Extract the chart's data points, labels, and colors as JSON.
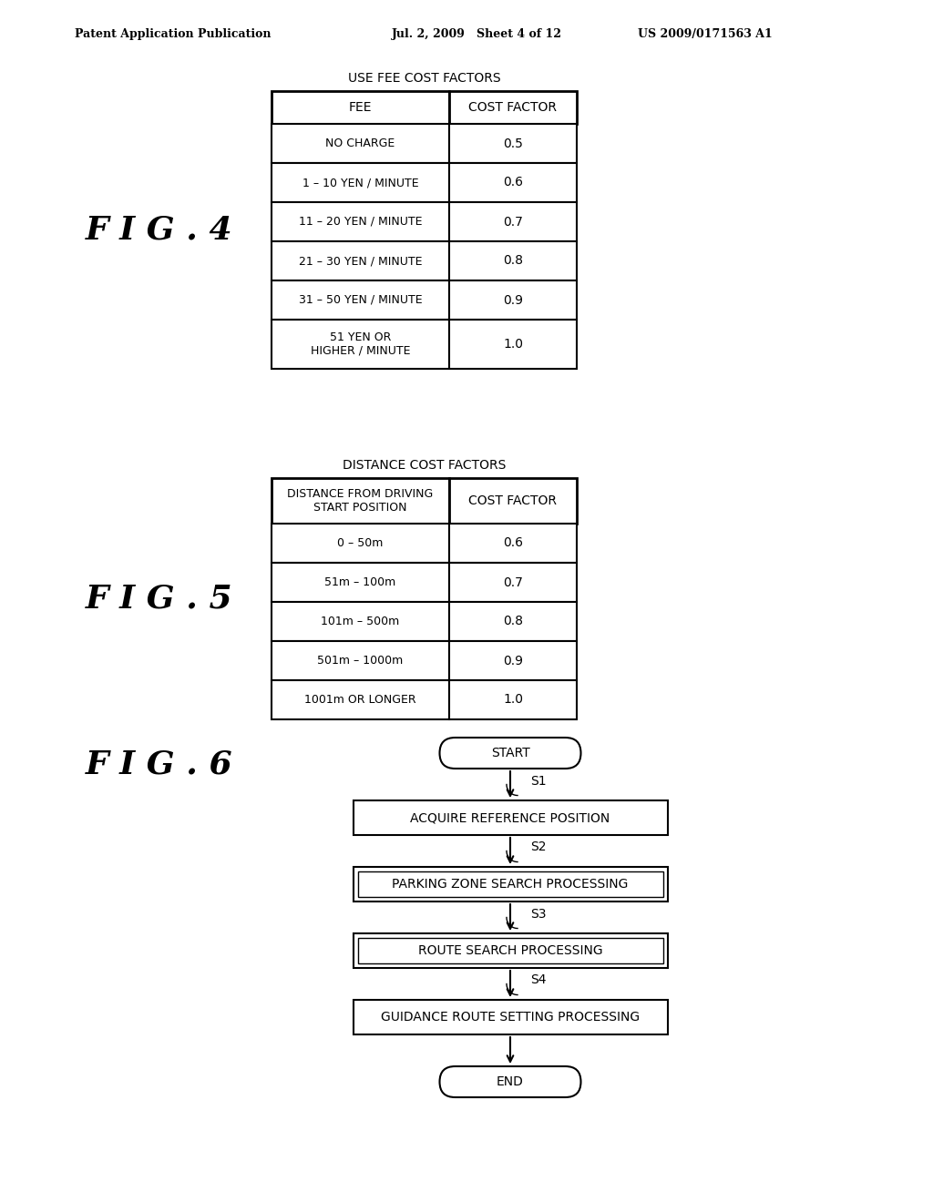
{
  "bg_color": "#ffffff",
  "header_left": "Patent Application Publication",
  "header_mid": "Jul. 2, 2009   Sheet 4 of 12",
  "header_right": "US 2009/0171563 A1",
  "fig4_label": "F I G . 4",
  "fig4_title": "USE FEE COST FACTORS",
  "fig4_col1_header": "FEE",
  "fig4_col2_header": "COST FACTOR",
  "fig4_rows": [
    [
      "NO CHARGE",
      "0.5"
    ],
    [
      "1 – 10 YEN / MINUTE",
      "0.6"
    ],
    [
      "11 – 20 YEN / MINUTE",
      "0.7"
    ],
    [
      "21 – 30 YEN / MINUTE",
      "0.8"
    ],
    [
      "31 – 50 YEN / MINUTE",
      "0.9"
    ],
    [
      "51 YEN OR\nHIGHER / MINUTE",
      "1.0"
    ]
  ],
  "fig5_label": "F I G . 5",
  "fig5_title": "DISTANCE COST FACTORS",
  "fig5_col1_header": "DISTANCE FROM DRIVING\nSTART POSITION",
  "fig5_col2_header": "COST FACTOR",
  "fig5_rows": [
    [
      "0 – 50m",
      "0.6"
    ],
    [
      "51m – 100m",
      "0.7"
    ],
    [
      "101m – 500m",
      "0.8"
    ],
    [
      "501m – 1000m",
      "0.9"
    ],
    [
      "1001m OR LONGER",
      "1.0"
    ]
  ],
  "fig6_label": "F I G . 6",
  "flowchart_nodes": [
    "START",
    "ACQUIRE REFERENCE POSITION",
    "PARKING ZONE SEARCH PROCESSING",
    "ROUTE SEARCH PROCESSING",
    "GUIDANCE ROUTE SETTING PROCESSING",
    "END"
  ],
  "flowchart_steps": [
    "S1",
    "S2",
    "S3",
    "S4"
  ]
}
